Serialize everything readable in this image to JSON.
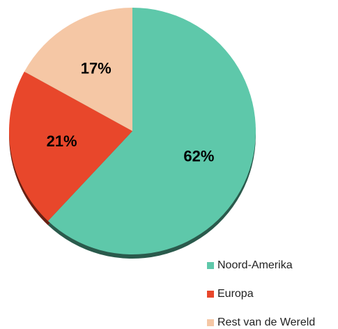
{
  "chart_data": {
    "type": "pie",
    "categories": [
      "Noord-Amerika",
      "Europa",
      "Rest van de Wereld"
    ],
    "values": [
      62,
      21,
      17
    ],
    "value_labels": [
      "62%",
      "21%",
      "17%"
    ],
    "colors": [
      "#5ec8aa",
      "#e8472b",
      "#f5c7a5"
    ]
  }
}
